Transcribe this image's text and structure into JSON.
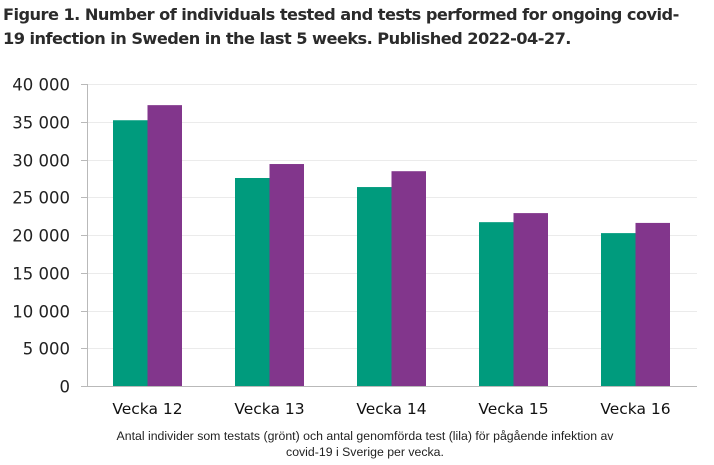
{
  "chart_data": {
    "type": "bar",
    "title": "Figure 1. Number of individuals tested and tests performed for ongoing covid-19 infection in Sweden in the last 5 weeks. Published 2022-04-27.",
    "xlabel": "Antal individer som testats (grönt) och antal genomförda test (lila) för pågående infektion av covid-19 i Sverige per vecka.",
    "ylabel": "",
    "categories": [
      "Vecka 12",
      "Vecka 13",
      "Vecka 14",
      "Vecka 15",
      "Vecka 16"
    ],
    "series": [
      {
        "name": "Antal individer som testats (grönt)",
        "color": "#009B7D",
        "values": [
          35200,
          27550,
          26350,
          21700,
          20250
        ]
      },
      {
        "name": "Antal genomförda test (lila)",
        "color": "#82368C",
        "values": [
          37200,
          29400,
          28450,
          22900,
          21600
        ]
      }
    ],
    "ylim": [
      0,
      40000
    ],
    "yticks": [
      0,
      5000,
      10000,
      15000,
      20000,
      25000,
      30000,
      35000,
      40000
    ],
    "ytick_labels": [
      "0",
      "5 000",
      "10 000",
      "15 000",
      "20 000",
      "25 000",
      "30 000",
      "35 000",
      "40 000"
    ],
    "grid": true,
    "legend": "none"
  },
  "title_line1": "Figure 1. Number of individuals tested and tests performed for ongoing covid-",
  "title_line2": "19 infection in Sweden in the last 5 weeks. Published 2022-04-27.",
  "caption_line1": "Antal individer som testats (grönt) och antal genomförda test (lila) för pågående infektion av",
  "caption_line2": "covid-19 i Sverige per vecka."
}
